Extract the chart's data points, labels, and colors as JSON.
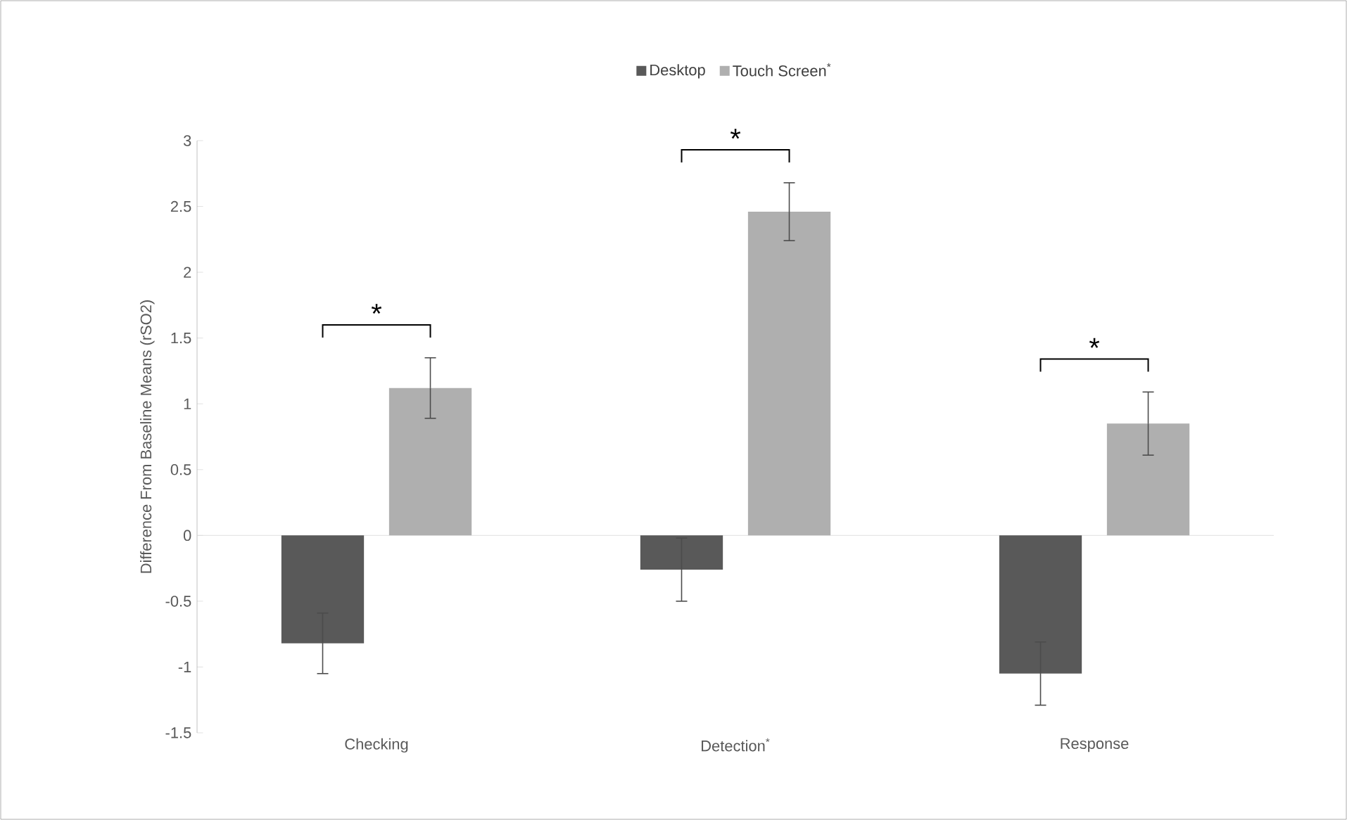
{
  "chart_data": {
    "type": "bar",
    "ylabel": "Difference From Baseline Means (rSO2)",
    "categories": [
      "Checking",
      "Detection$^{*}$",
      "Response"
    ],
    "series": [
      {
        "name": "Desktop",
        "color": "#595959",
        "values": [
          -0.82,
          -0.26,
          -1.05
        ],
        "errors": [
          0.23,
          0.24,
          0.24
        ]
      },
      {
        "name": "Touch Screen$^{*}$",
        "color": "#afafaf",
        "values": [
          1.12,
          2.46,
          0.85
        ],
        "errors": [
          0.23,
          0.22,
          0.24
        ]
      }
    ],
    "ylim": [
      -1.5,
      3
    ],
    "yticks": [
      -1.5,
      -1,
      -0.5,
      0,
      0.5,
      1,
      1.5,
      2,
      2.5,
      3
    ],
    "ref_lines": [
      {
        "axis": "y",
        "value": 0,
        "color": "#d9d9d9"
      }
    ],
    "legend": "top",
    "annotations": [
      "*",
      "*",
      "*"
    ]
  }
}
